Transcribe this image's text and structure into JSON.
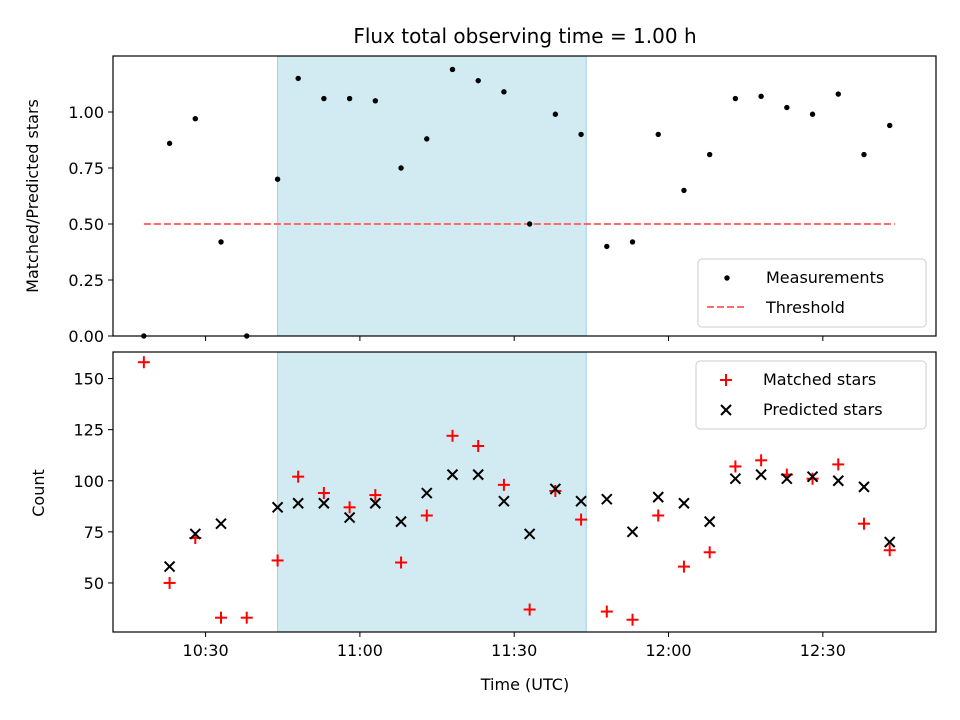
{
  "title": "Flux total observing time = 1.00 h",
  "xlabel": "Time (UTC)",
  "x_ticks": [
    "10:30",
    "11:00",
    "11:30",
    "12:00",
    "12:30"
  ],
  "colors": {
    "band": "#add8e6",
    "threshold": "#ff6b6b",
    "matched": "#ff0000",
    "predicted": "#000000",
    "measurement": "#000000"
  },
  "chart_data": [
    {
      "type": "scatter",
      "ylabel": "Matched/Predicted stars",
      "xlim": [
        "10:12",
        "12:52"
      ],
      "ylim": [
        0,
        1.25
      ],
      "y_ticks": [
        "0.00",
        "0.25",
        "0.50",
        "0.75",
        "1.00"
      ],
      "shaded_interval": [
        "10:44",
        "11:44"
      ],
      "threshold": {
        "value": 0.5,
        "x_range": [
          "10:18",
          "12:44"
        ]
      },
      "legend": {
        "position": "lower right",
        "entries": [
          "Measurements",
          "Threshold"
        ]
      },
      "series": [
        {
          "name": "Measurements",
          "x": [
            "10:18",
            "10:23",
            "10:28",
            "10:33",
            "10:38",
            "10:44",
            "10:48",
            "10:53",
            "10:58",
            "11:03",
            "11:08",
            "11:13",
            "11:18",
            "11:23",
            "11:28",
            "11:33",
            "11:38",
            "11:43",
            "11:48",
            "11:53",
            "11:58",
            "12:03",
            "12:08",
            "12:13",
            "12:18",
            "12:23",
            "12:28",
            "12:33",
            "12:38",
            "12:43"
          ],
          "values": [
            0.0,
            0.86,
            0.97,
            0.42,
            0.0,
            0.7,
            1.15,
            1.06,
            1.06,
            1.05,
            0.75,
            0.88,
            1.19,
            1.14,
            1.09,
            0.5,
            0.99,
            0.9,
            0.4,
            0.42,
            0.9,
            0.65,
            0.81,
            1.06,
            1.07,
            1.02,
            0.99,
            1.08,
            0.81,
            0.94
          ]
        }
      ]
    },
    {
      "type": "scatter",
      "ylabel": "Count",
      "xlim": [
        "10:12",
        "12:52"
      ],
      "ylim": [
        26,
        163
      ],
      "y_ticks": [
        "50",
        "75",
        "100",
        "125",
        "150"
      ],
      "shaded_interval": [
        "10:44",
        "11:44"
      ],
      "legend": {
        "position": "upper right",
        "entries": [
          "Matched stars",
          "Predicted stars"
        ]
      },
      "series": [
        {
          "name": "Matched stars",
          "x": [
            "10:18",
            "10:23",
            "10:28",
            "10:33",
            "10:38",
            "10:44",
            "10:48",
            "10:53",
            "10:58",
            "11:03",
            "11:08",
            "11:13",
            "11:18",
            "11:23",
            "11:28",
            "11:33",
            "11:38",
            "11:43",
            "11:48",
            "11:53",
            "11:58",
            "12:03",
            "12:08",
            "12:13",
            "12:18",
            "12:23",
            "12:28",
            "12:33",
            "12:38",
            "12:43"
          ],
          "values": [
            158,
            50,
            72,
            33,
            33,
            61,
            102,
            94,
            87,
            93,
            60,
            83,
            122,
            117,
            98,
            37,
            95,
            81,
            36,
            32,
            83,
            58,
            65,
            107,
            110,
            103,
            101,
            108,
            79,
            66
          ]
        },
        {
          "name": "Predicted stars",
          "x": [
            "10:23",
            "10:28",
            "10:33",
            "10:44",
            "10:48",
            "10:53",
            "10:58",
            "11:03",
            "11:08",
            "11:13",
            "11:18",
            "11:23",
            "11:28",
            "11:33",
            "11:38",
            "11:43",
            "11:48",
            "11:53",
            "11:58",
            "12:03",
            "12:08",
            "12:13",
            "12:18",
            "12:23",
            "12:28",
            "12:33",
            "12:38",
            "12:43"
          ],
          "values": [
            58,
            74,
            79,
            87,
            89,
            89,
            82,
            89,
            80,
            94,
            103,
            103,
            90,
            74,
            96,
            90,
            91,
            75,
            92,
            89,
            80,
            101,
            103,
            101,
            102,
            100,
            97,
            70
          ]
        }
      ]
    }
  ]
}
